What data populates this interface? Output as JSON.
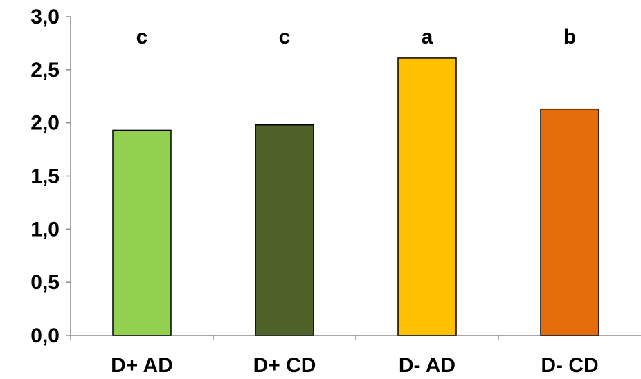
{
  "chart_data": {
    "type": "bar",
    "title": "",
    "xlabel": "",
    "ylabel": "",
    "categories": [
      "D+ AD",
      "D+ CD",
      "D- AD",
      "D- CD"
    ],
    "values": [
      1.93,
      1.98,
      2.61,
      2.13
    ],
    "significance_letters": [
      "c",
      "c",
      "a",
      "b"
    ],
    "bar_colors": [
      "#92d050",
      "#4f6228",
      "#ffc000",
      "#e46c0a"
    ],
    "ylim": [
      0,
      3.0
    ],
    "yticks": [
      0.0,
      0.5,
      1.0,
      1.5,
      2.0,
      2.5,
      3.0
    ],
    "ytick_labels": [
      "0,0",
      "0,5",
      "1,0",
      "1,5",
      "2,0",
      "2,5",
      "3,0"
    ],
    "grid": false,
    "legend": "none"
  }
}
